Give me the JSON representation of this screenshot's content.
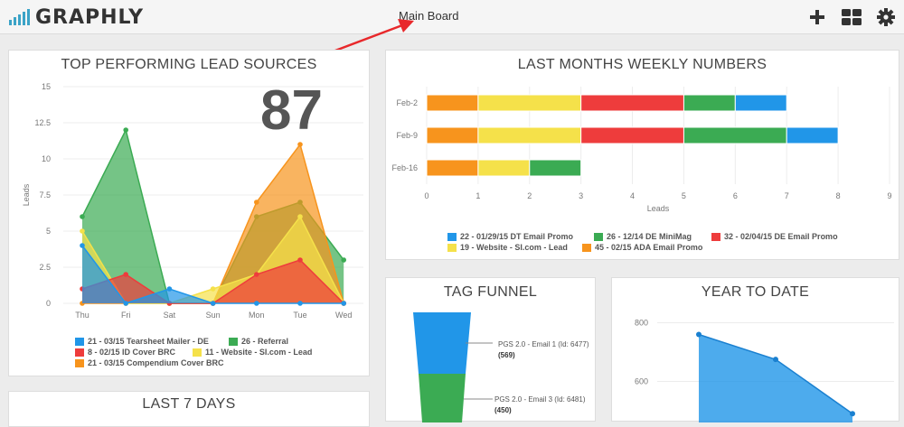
{
  "app": {
    "name": "GRAPHLY",
    "board_title": "Main Board"
  },
  "header_icons": [
    "plus-icon",
    "grid-icon",
    "gear-icon"
  ],
  "colors": {
    "blue": "#2196e8",
    "green": "#3bab53",
    "red": "#ee3c3c",
    "yellow": "#f5e14a",
    "orange": "#f7941d",
    "accent": "#3ba3c7"
  },
  "lead_sources": {
    "title": "TOP PERFORMING LEAD SOURCES",
    "big_number": "87",
    "legend": [
      {
        "label": "21 - 03/15 Tearsheet Mailer - DE",
        "color": "#2196e8"
      },
      {
        "label": "26 - Referral",
        "color": "#3bab53"
      },
      {
        "label": "8 - 02/15 ID Cover BRC",
        "color": "#ee3c3c"
      },
      {
        "label": "11 - Website - SI.com - Lead",
        "color": "#f5e14a"
      },
      {
        "label": "21 - 03/15 Compendium Cover BRC",
        "color": "#f7941d"
      }
    ]
  },
  "weekly": {
    "title": "LAST MONTHS WEEKLY NUMBERS",
    "legend": [
      {
        "label": "22 - 01/29/15 DT Email Promo",
        "color": "#2196e8"
      },
      {
        "label": "26 - 12/14 DE MiniMag",
        "color": "#3bab53"
      },
      {
        "label": "32 - 02/04/15 DE Email Promo",
        "color": "#ee3c3c"
      },
      {
        "label": "19 - Website - SI.com - Lead",
        "color": "#f5e14a"
      },
      {
        "label": "45 - 02/15 ADA Email Promo",
        "color": "#f7941d"
      }
    ]
  },
  "funnel": {
    "title": "TAG FUNNEL",
    "stages": [
      {
        "label": "PGS 2.0 - Email 1 (Id: 6477)",
        "count": "(569)",
        "color": "#2196e8"
      },
      {
        "label": "PGS 2.0 - Email 3 (Id: 6481)",
        "count": "(450)",
        "color": "#3bab53"
      }
    ]
  },
  "ytd": {
    "title": "YEAR TO DATE"
  },
  "last7": {
    "title": "LAST 7 DAYS"
  },
  "chart_data": [
    {
      "type": "area",
      "title": "TOP PERFORMING LEAD SOURCES",
      "ylabel": "Leads",
      "ylim": [
        0,
        15
      ],
      "yticks": [
        "0",
        "2.5",
        "5",
        "7.5",
        "10",
        "12.5",
        "15"
      ],
      "categories": [
        "Thu",
        "Fri",
        "Sat",
        "Sun",
        "Mon",
        "Tue",
        "Wed"
      ],
      "series": [
        {
          "name": "26 - Referral",
          "color": "#3bab53",
          "values": [
            6,
            12,
            0,
            0,
            6,
            7,
            3
          ]
        },
        {
          "name": "21 - 03/15 Compendium Cover BRC",
          "color": "#f7941d",
          "values": [
            0,
            0,
            0,
            0,
            7,
            11,
            0
          ]
        },
        {
          "name": "11 - Website - SI.com - Lead",
          "color": "#f5e14a",
          "values": [
            5,
            0,
            0,
            1,
            2,
            6,
            0
          ]
        },
        {
          "name": "8 - 02/15 ID Cover BRC",
          "color": "#ee3c3c",
          "values": [
            1,
            2,
            0,
            0,
            2,
            3,
            0
          ]
        },
        {
          "name": "21 - 03/15 Tearsheet Mailer - DE",
          "color": "#2196e8",
          "values": [
            4,
            0,
            1,
            0,
            0,
            0,
            0
          ]
        }
      ]
    },
    {
      "type": "bar",
      "orientation": "horizontal",
      "stacked": true,
      "title": "LAST MONTHS WEEKLY NUMBERS",
      "xlabel": "Leads",
      "xlim": [
        0,
        9
      ],
      "xticks": [
        "0",
        "1",
        "2",
        "3",
        "4",
        "5",
        "6",
        "7",
        "8",
        "9"
      ],
      "categories": [
        "Feb-2",
        "Feb-9",
        "Feb-16"
      ],
      "series": [
        {
          "name": "45 - 02/15 ADA Email Promo",
          "color": "#f7941d",
          "values": [
            1,
            1,
            1
          ]
        },
        {
          "name": "19 - Website - SI.com - Lead",
          "color": "#f5e14a",
          "values": [
            2,
            2,
            1
          ]
        },
        {
          "name": "32 - 02/04/15 DE Email Promo",
          "color": "#ee3c3c",
          "values": [
            2,
            2,
            0
          ]
        },
        {
          "name": "26 - 12/14 DE MiniMag",
          "color": "#3bab53",
          "values": [
            1,
            2,
            1
          ]
        },
        {
          "name": "22 - 01/29/15 DT Email Promo",
          "color": "#2196e8",
          "values": [
            1,
            1,
            0
          ]
        }
      ]
    },
    {
      "type": "area",
      "title": "YEAR TO DATE",
      "yticks": [
        "600",
        "800"
      ],
      "ylim": [
        460,
        860
      ],
      "values": [
        760,
        675,
        490
      ]
    }
  ]
}
